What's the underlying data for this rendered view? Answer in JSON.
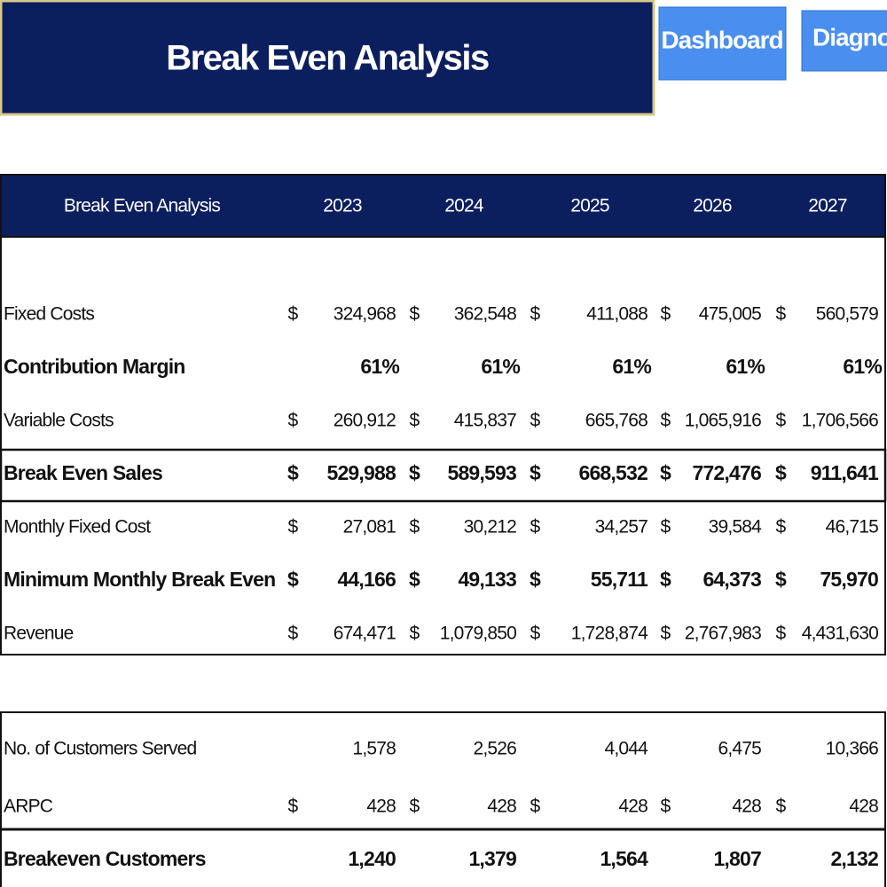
{
  "header": {
    "title": "Break Even Analysis",
    "buttons": [
      "Dashboard",
      "Diagnostic"
    ]
  },
  "tables": [
    {
      "header": {
        "title": "Break Even Analysis",
        "columns": [
          "2023",
          "2024",
          "2025",
          "2026",
          "2027"
        ]
      },
      "rows": [
        {
          "label": "Fixed Costs",
          "currency": "$",
          "values": [
            "324,968",
            "362,548",
            "411,088",
            "475,005",
            "560,579"
          ]
        },
        {
          "label": "Contribution Margin",
          "bold": true,
          "values": [
            "61%",
            "61%",
            "61%",
            "61%",
            "61%"
          ]
        },
        {
          "label": "Variable Costs",
          "currency": "$",
          "values": [
            "260,912",
            "415,837",
            "665,768",
            "1,065,916",
            "1,706,566"
          ]
        },
        {
          "label": "Break Even Sales",
          "bold": true,
          "boxed": true,
          "currency": "$",
          "values": [
            "529,988",
            "589,593",
            "668,532",
            "772,476",
            "911,641"
          ]
        },
        {
          "label": "Monthly Fixed Cost",
          "currency": "$",
          "values": [
            "27,081",
            "30,212",
            "34,257",
            "39,584",
            "46,715"
          ]
        },
        {
          "label": "Minimum Monthly Break Even",
          "bold": true,
          "currency": "$",
          "values": [
            "44,166",
            "49,133",
            "55,711",
            "64,373",
            "75,970"
          ]
        },
        {
          "label": "Revenue",
          "currency": "$",
          "values": [
            "674,471",
            "1,079,850",
            "1,728,874",
            "2,767,983",
            "4,431,630"
          ]
        }
      ]
    },
    {
      "rows": [
        {
          "label": "No. of Customers Served",
          "values": [
            "1,578",
            "2,526",
            "4,044",
            "6,475",
            "10,366"
          ]
        },
        {
          "label": "ARPC",
          "currency": "$",
          "values": [
            "428",
            "428",
            "428",
            "428",
            "428"
          ]
        },
        {
          "label": "Breakeven Customers",
          "bold": true,
          "boxed": true,
          "values": [
            "1,240",
            "1,379",
            "1,564",
            "1,807",
            "2,132"
          ]
        }
      ]
    }
  ]
}
